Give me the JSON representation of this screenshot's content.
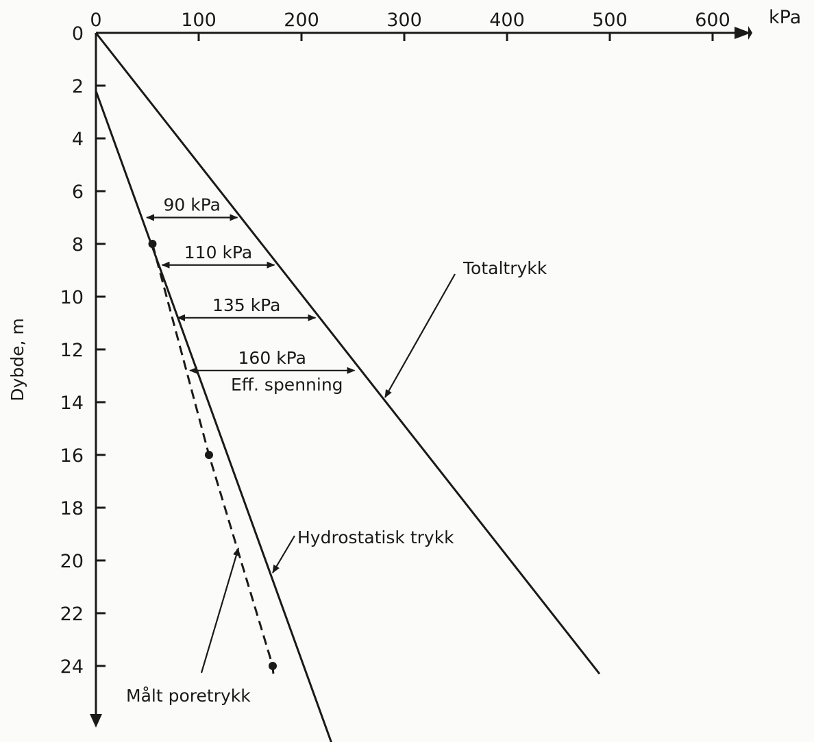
{
  "chart_data": {
    "type": "line",
    "x_unit": "kPa",
    "ylabel": "Dybde, m",
    "x_ticks": [
      0,
      100,
      200,
      300,
      400,
      500,
      600
    ],
    "y_ticks": [
      0,
      2,
      4,
      6,
      8,
      10,
      12,
      14,
      16,
      18,
      20,
      22,
      24
    ],
    "xlim": [
      0,
      620
    ],
    "ylim": [
      0,
      26
    ],
    "series": [
      {
        "name": "Totaltrykk",
        "style": "solid",
        "points": [
          [
            0,
            0
          ],
          [
            490,
            24.3
          ]
        ]
      },
      {
        "name": "Hydrostatisk trykk",
        "style": "solid",
        "points": [
          [
            0,
            2.2
          ],
          [
            230,
            27
          ]
        ]
      },
      {
        "name": "Målt poretrykk",
        "style": "dashed",
        "points": [
          [
            55,
            8
          ],
          [
            110,
            16
          ],
          [
            172,
            24
          ],
          [
            173,
            24.5
          ]
        ],
        "markers": [
          [
            55,
            8
          ],
          [
            110,
            16
          ],
          [
            172,
            24
          ]
        ]
      }
    ],
    "effective_stress_annotations": [
      {
        "label": "90 kPa",
        "depth": 7,
        "x_from": 48,
        "x_to": 139
      },
      {
        "label": "110 kPa",
        "depth": 8.8,
        "x_from": 63,
        "x_to": 175
      },
      {
        "label": "135 kPa",
        "depth": 10.8,
        "x_from": 78,
        "x_to": 215
      },
      {
        "label": "160 kPa",
        "depth": 12.8,
        "x_from": 90,
        "x_to": 253
      }
    ],
    "annotation_labels": {
      "total": "Totaltrykk",
      "hydro": "Hydrostatisk trykk",
      "measured": "Målt poretrykk",
      "eff": "Eff. spenning"
    }
  }
}
